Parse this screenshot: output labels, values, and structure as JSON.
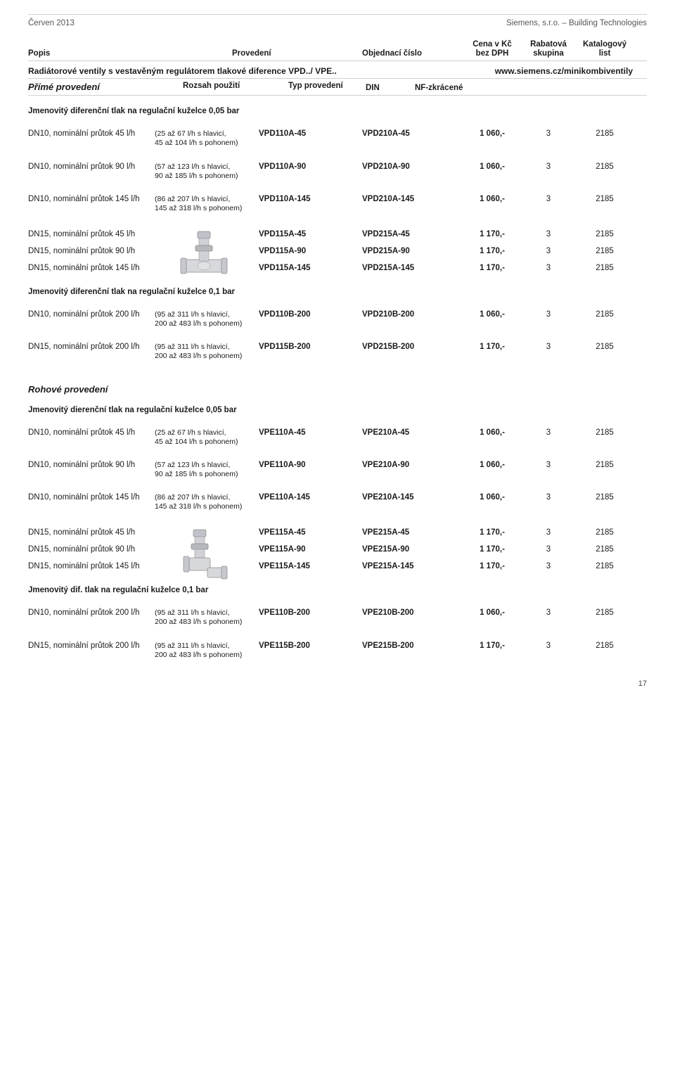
{
  "header": {
    "left": "Červen 2013",
    "right": "Siemens, s.r.o. – Building Technologies"
  },
  "columns": {
    "popis": "Popis",
    "provedeni": "Provedení",
    "objednaci": "Objednací číslo",
    "cena_l1": "Cena v Kč",
    "cena_l2": "bez DPH",
    "rabat_l1": "Rabatová",
    "rabat_l2": "skupina",
    "katal_l1": "Katalogový",
    "katal_l2": "list"
  },
  "sectionTitle": {
    "title": "Radiátorové ventily s vestavěným regulátorem tlakové diference VPD../ VPE..",
    "link": "www.siemens.cz/minikombiventily"
  },
  "subHeader": {
    "left_label": "Přímé provedení",
    "range_label": "Rozsah použití",
    "type_label": "Typ provedení",
    "col_din": "DIN",
    "col_nf": "NF-zkrácené"
  },
  "groupA_head": "Jmenovitý diferenční tlak na regulační kuželce 0,05 bar",
  "groupA": [
    {
      "desc": "DN10, nominální průtok 45 l/h",
      "range1": "(25 až  67 l/h s hlavicí,",
      "range2": "45 až 104 l/h s pohonem)",
      "c1": "VPD110A-45",
      "c2": "VPD210A-45",
      "price": "1 060,-",
      "rabat": "3",
      "katal": "2185"
    },
    {
      "desc": "DN10, nominální průtok 90 l/h",
      "range1": "(57 až 123 l/h s hlavicí,",
      "range2": "90 až 185 l/h s pohonem)",
      "c1": "VPD110A-90",
      "c2": "VPD210A-90",
      "price": "1 060,-",
      "rabat": "3",
      "katal": "2185"
    },
    {
      "desc": "DN10, nominální průtok 145 l/h",
      "range1": "(86 až 207 l/h s hlavicí,",
      "range2": "145 až 318 l/h s pohonem)",
      "c1": "VPD110A-145",
      "c2": "VPD210A-145",
      "price": "1 060,-",
      "rabat": "3",
      "katal": "2185"
    }
  ],
  "groupA_img": [
    {
      "desc": "DN15, nominální průtok 45 l/h",
      "c1": "VPD115A-45",
      "c2": "VPD215A-45",
      "price": "1 170,-",
      "rabat": "3",
      "katal": "2185"
    },
    {
      "desc": "DN15, nominální průtok 90 l/h",
      "c1": "VPD115A-90",
      "c2": "VPD215A-90",
      "price": "1 170,-",
      "rabat": "3",
      "katal": "2185"
    },
    {
      "desc": "DN15, nominální průtok 145 l/h",
      "c1": "VPD115A-145",
      "c2": "VPD215A-145",
      "price": "1 170,-",
      "rabat": "3",
      "katal": "2185"
    }
  ],
  "groupB_head": "Jmenovitý diferenční tlak na regulační kuželce 0,1 bar",
  "groupB": [
    {
      "desc": "DN10, nominální průtok 200 l/h",
      "range1": "(95 až 311 l/h s hlavicí,",
      "range2": "200 až 483 l/h s pohonem)",
      "c1": "VPD110B-200",
      "c2": "VPD210B-200",
      "price": "1 060,-",
      "rabat": "3",
      "katal": "2185"
    },
    {
      "desc": "DN15, nominální průtok 200 l/h",
      "range1": "(95 až 311 l/h s hlavicí,",
      "range2": "200 až 483 l/h s pohonem)",
      "c1": "VPD115B-200",
      "c2": "VPD215B-200",
      "price": "1 170,-",
      "rabat": "3",
      "katal": "2185"
    }
  ],
  "rohove_head": "Rohové provedení",
  "groupC_head": "Jmenovitý dierenční tlak na regulační kuželce 0,05 bar",
  "groupC": [
    {
      "desc": "DN10, nominální průtok 45 l/h",
      "range1": "(25 až  67 l/h s hlavicí,",
      "range2": "45 až 104 l/h s pohonem)",
      "c1": "VPE110A-45",
      "c2": "VPE210A-45",
      "price": "1 060,-",
      "rabat": "3",
      "katal": "2185"
    },
    {
      "desc": "DN10, nominální průtok 90 l/h",
      "range1": "(57 až 123 l/h s hlavicí,",
      "range2": "90 až 185 l/h s pohonem)",
      "c1": "VPE110A-90",
      "c2": "VPE210A-90",
      "price": "1 060,-",
      "rabat": "3",
      "katal": "2185"
    },
    {
      "desc": "DN10, nominální průtok 145 l/h",
      "range1": "(86 až 207 l/h s hlavicí,",
      "range2": "145 až 318 l/h s pohonem)",
      "c1": "VPE110A-145",
      "c2": "VPE210A-145",
      "price": "1 060,-",
      "rabat": "3",
      "katal": "2185"
    }
  ],
  "groupC_img": [
    {
      "desc": "DN15, nominální průtok 45 l/h",
      "c1": "VPE115A-45",
      "c2": "VPE215A-45",
      "price": "1 170,-",
      "rabat": "3",
      "katal": "2185"
    },
    {
      "desc": "DN15, nominální průtok 90 l/h",
      "c1": "VPE115A-90",
      "c2": "VPE215A-90",
      "price": "1 170,-",
      "rabat": "3",
      "katal": "2185"
    },
    {
      "desc": "DN15, nominální průtok 145 l/h",
      "c1": "VPE115A-145",
      "c2": "VPE215A-145",
      "price": "1 170,-",
      "rabat": "3",
      "katal": "2185"
    }
  ],
  "groupD_head": "Jmenovitý dif. tlak na regulační kuželce 0,1 bar",
  "groupD": [
    {
      "desc": "DN10, nominální průtok 200 l/h",
      "range1": "(95 až 311 l/h s hlavicí,",
      "range2": "200 až 483 l/h s pohonem)",
      "c1": "VPE110B-200",
      "c2": "VPE210B-200",
      "price": "1 060,-",
      "rabat": "3",
      "katal": "2185"
    },
    {
      "desc": "DN15, nominální průtok 200 l/h",
      "range1": "(95 až 311 l/h s hlavicí,",
      "range2": "200 až 483 l/h s pohonem)",
      "c1": "VPE115B-200",
      "c2": "VPE215B-200",
      "price": "1 170,-",
      "rabat": "3",
      "katal": "2185"
    }
  ],
  "pageNumber": "17",
  "svg": {
    "valve_straight_body_fill": "#d7d7d7",
    "valve_cap_fill": "#b9bbc0",
    "valve_stroke": "#8f8f8f"
  }
}
